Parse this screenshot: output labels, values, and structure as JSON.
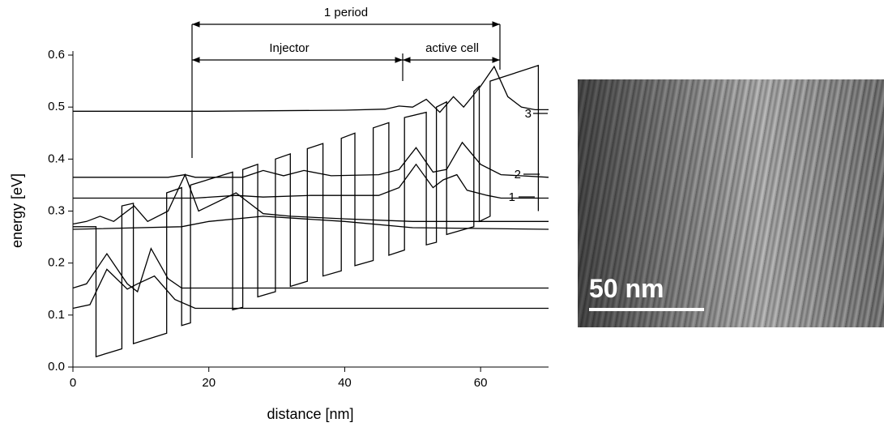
{
  "chart_data": {
    "type": "line",
    "x_label": "distance [nm]",
    "y_label": "energy [eV]",
    "xlim": [
      0,
      70
    ],
    "xticks": [
      0,
      20,
      40,
      60
    ],
    "ylim": [
      0,
      0.6
    ],
    "yticks": [
      {
        "value": 0,
        "label": "0.0"
      },
      0.1,
      0.2,
      0.3,
      0.4,
      0.5,
      0.6
    ],
    "grid": false,
    "annotations": {
      "period": "1 period",
      "injector": "Injector",
      "active": "active cell",
      "level1": "1",
      "level2": "2",
      "level3": "3"
    },
    "series": [
      {
        "color": "#000000",
        "x": [
          0,
          3.4,
          3.4,
          7.2,
          7.2,
          8.9,
          8.9,
          13.8,
          13.8,
          16.0,
          16.0,
          17.3,
          17.3,
          23.5,
          23.5,
          25,
          25,
          27.2,
          27.2,
          29.8,
          29.8,
          32,
          32,
          34.5,
          34.5,
          36.8,
          36.8,
          39.5,
          39.5,
          41.5,
          41.5,
          44.2,
          44.2,
          46.5,
          46.5,
          48.8,
          48.8,
          52,
          52,
          53.5,
          53.5,
          55,
          55,
          59,
          59,
          59.8,
          59.8,
          61.4,
          61.4,
          68.5,
          68.5
        ],
        "values": [
          0.27,
          0.27,
          0.02,
          0.035,
          0.31,
          0.315,
          0.045,
          0.065,
          0.335,
          0.345,
          0.08,
          0.085,
          0.35,
          0.375,
          0.11,
          0.115,
          0.38,
          0.39,
          0.135,
          0.145,
          0.4,
          0.41,
          0.155,
          0.165,
          0.42,
          0.43,
          0.175,
          0.185,
          0.44,
          0.45,
          0.195,
          0.205,
          0.46,
          0.47,
          0.215,
          0.225,
          0.48,
          0.49,
          0.235,
          0.24,
          0.5,
          0.51,
          0.255,
          0.27,
          0.53,
          0.54,
          0.28,
          0.29,
          0.55,
          0.58,
          0.3
        ]
      },
      {
        "color": "#000000",
        "x": [
          0,
          20,
          40,
          46,
          48,
          50,
          52,
          54,
          56,
          57.5,
          60,
          62,
          64,
          66,
          68,
          70
        ],
        "values": [
          0.492,
          0.492,
          0.494,
          0.496,
          0.502,
          0.5,
          0.515,
          0.49,
          0.52,
          0.5,
          0.54,
          0.578,
          0.52,
          0.5,
          0.495,
          0.495
        ]
      },
      {
        "color": "#000000",
        "x": [
          0,
          14,
          16.5,
          18,
          25,
          28,
          31,
          34,
          38,
          45,
          48,
          50.5,
          53,
          55,
          57.3,
          60,
          63,
          70
        ],
        "values": [
          0.365,
          0.365,
          0.37,
          0.365,
          0.365,
          0.378,
          0.368,
          0.378,
          0.368,
          0.37,
          0.38,
          0.422,
          0.375,
          0.38,
          0.432,
          0.39,
          0.37,
          0.365
        ]
      },
      {
        "color": "#000000",
        "x": [
          0,
          18,
          24,
          28,
          35,
          45,
          48,
          50.5,
          53,
          54.5,
          56.5,
          58,
          61,
          63,
          70
        ],
        "values": [
          0.325,
          0.325,
          0.33,
          0.327,
          0.33,
          0.33,
          0.345,
          0.39,
          0.345,
          0.36,
          0.37,
          0.34,
          0.33,
          0.325,
          0.325
        ]
      },
      {
        "color": "#000000",
        "x": [
          0,
          2,
          4,
          6,
          9,
          11,
          14,
          16.5,
          18.5,
          24,
          28,
          32,
          40,
          50,
          70
        ],
        "values": [
          0.275,
          0.28,
          0.29,
          0.28,
          0.31,
          0.28,
          0.3,
          0.37,
          0.3,
          0.335,
          0.295,
          0.29,
          0.285,
          0.28,
          0.28
        ]
      },
      {
        "color": "#000000",
        "x": [
          0,
          16,
          20,
          28,
          40,
          50,
          70
        ],
        "values": [
          0.265,
          0.27,
          0.28,
          0.29,
          0.28,
          0.268,
          0.265
        ]
      },
      {
        "color": "#000000",
        "x": [
          0,
          2,
          5,
          8,
          9.5,
          11.5,
          14,
          16,
          20,
          70
        ],
        "values": [
          0.152,
          0.16,
          0.218,
          0.16,
          0.145,
          0.228,
          0.17,
          0.152,
          0.152,
          0.152
        ]
      },
      {
        "color": "#000000",
        "x": [
          0,
          2.5,
          5,
          8,
          9.5,
          12,
          15,
          18,
          70
        ],
        "values": [
          0.113,
          0.12,
          0.188,
          0.15,
          0.16,
          0.175,
          0.13,
          0.113,
          0.113
        ]
      }
    ]
  },
  "image": {
    "scale_bar": "50 nm"
  }
}
